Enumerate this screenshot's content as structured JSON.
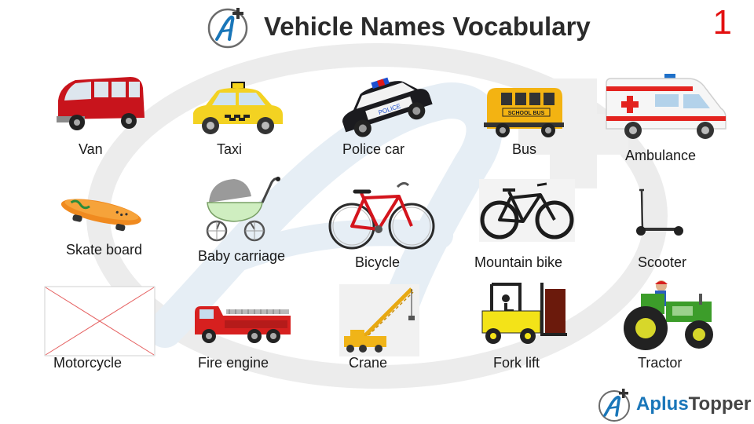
{
  "header": {
    "title": "Vehicle Names Vocabulary",
    "page_number": "1"
  },
  "brand": {
    "name_part1": "Aplus",
    "name_part2": "Topper",
    "logo_glyph": "A+",
    "color_accent": "#1976b9"
  },
  "vehicles": [
    {
      "label": "Van",
      "icon": "van-icon"
    },
    {
      "label": "Taxi",
      "icon": "taxi-icon"
    },
    {
      "label": "Police car",
      "icon": "police-car-icon"
    },
    {
      "label": "Bus",
      "icon": "bus-icon"
    },
    {
      "label": "Ambulance",
      "icon": "ambulance-icon"
    },
    {
      "label": "Skate board",
      "icon": "skateboard-icon"
    },
    {
      "label": "Baby carriage",
      "icon": "baby-carriage-icon"
    },
    {
      "label": "Bicycle",
      "icon": "bicycle-icon"
    },
    {
      "label": "Mountain bike",
      "icon": "mountain-bike-icon"
    },
    {
      "label": "Scooter",
      "icon": "scooter-icon"
    },
    {
      "label": "Motorcycle",
      "icon": "broken-image-icon"
    },
    {
      "label": "Fire engine",
      "icon": "fire-engine-icon"
    },
    {
      "label": "Crane",
      "icon": "crane-icon"
    },
    {
      "label": "Fork lift",
      "icon": "forklift-icon"
    },
    {
      "label": "Tractor",
      "icon": "tractor-icon"
    }
  ],
  "images": {
    "bus_sign": "SCHOOL BUS",
    "police_sign": "POLICE"
  },
  "colors": {
    "title": "#2b2b2b",
    "page_number": "#e31010",
    "watermark": "#e8eef3"
  }
}
